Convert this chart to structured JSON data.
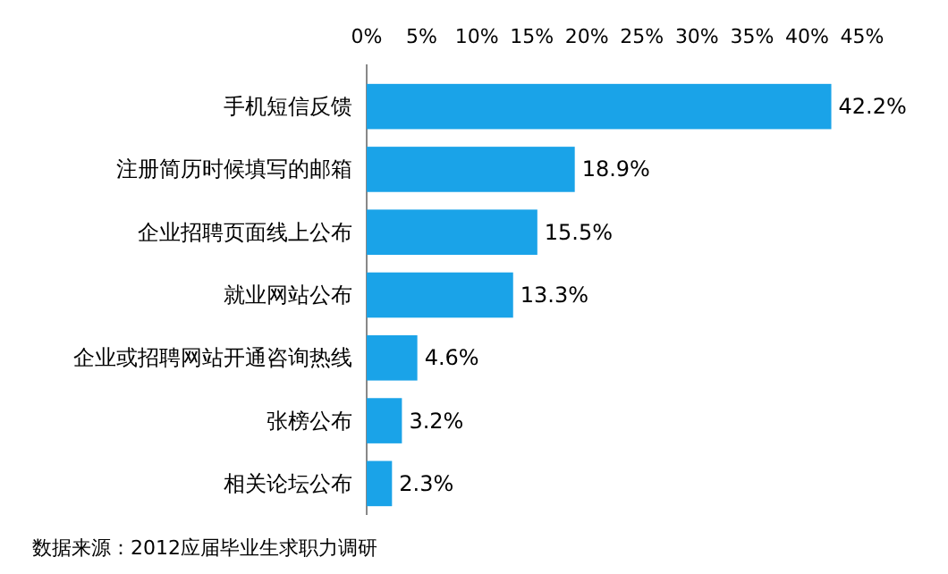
{
  "chart_data": {
    "type": "bar",
    "orientation": "horizontal",
    "categories": [
      "手机短信反馈",
      "注册简历时候填写的邮箱",
      "企业招聘页面线上公布",
      "就业网站公布",
      "企业或招聘网站开通咨询热线",
      "张榜公布",
      "相关论坛公布"
    ],
    "series": [
      {
        "color": "#1aa3e8",
        "values": [
          42.2,
          18.9,
          15.5,
          13.3,
          4.6,
          3.2,
          2.3
        ],
        "value_labels": [
          "42.2%",
          "18.9%",
          "15.5%",
          "13.3%",
          "4.6%",
          "3.2%",
          "2.3%"
        ]
      }
    ],
    "xlim": [
      0,
      45
    ],
    "xticks": [
      {
        "value": 0,
        "label": "0%"
      },
      {
        "value": 5,
        "label": "5%"
      },
      {
        "value": 10,
        "label": "10%"
      },
      {
        "value": 15,
        "label": "15%"
      },
      {
        "value": 20,
        "label": "20%"
      },
      {
        "value": 25,
        "label": "25%"
      },
      {
        "value": 30,
        "label": "30%"
      },
      {
        "value": 35,
        "label": "35%"
      },
      {
        "value": 40,
        "label": "40%"
      },
      {
        "value": 45,
        "label": "45%"
      }
    ],
    "annotations": [
      "数据来源：2012应届毕业生求职力调研"
    ]
  }
}
